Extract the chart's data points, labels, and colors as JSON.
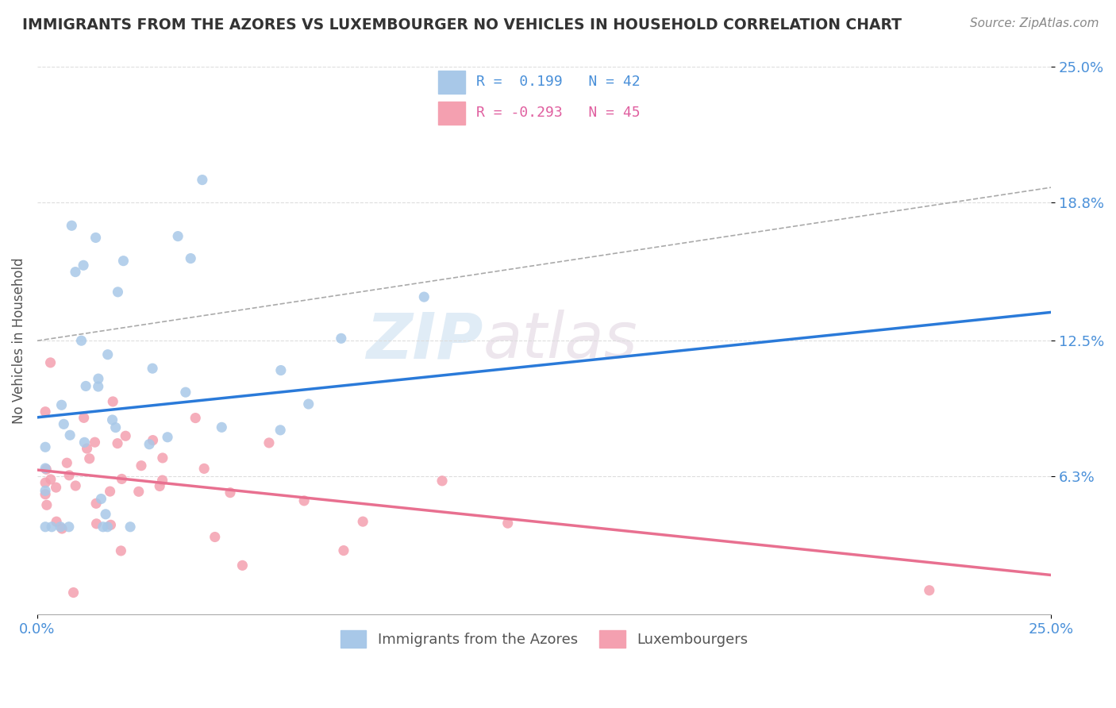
{
  "title": "IMMIGRANTS FROM THE AZORES VS LUXEMBOURGER NO VEHICLES IN HOUSEHOLD CORRELATION CHART",
  "source": "Source: ZipAtlas.com",
  "ylabel": "No Vehicles in Household",
  "xlim": [
    0.0,
    0.25
  ],
  "ylim": [
    0.0,
    0.25
  ],
  "xtick_labels": [
    "0.0%",
    "25.0%"
  ],
  "ytick_labels": [
    "6.3%",
    "12.5%",
    "18.8%",
    "25.0%"
  ],
  "ytick_values": [
    0.063,
    0.125,
    0.188,
    0.25
  ],
  "legend1_label": "Immigrants from the Azores",
  "legend2_label": "Luxembourgers",
  "R1": 0.199,
  "N1": 42,
  "R2": -0.293,
  "N2": 45,
  "color1": "#a8c8e8",
  "color2": "#f4a0b0",
  "line1_color": "#2a7ad9",
  "line2_color": "#e87090",
  "dash_color": "#aaaaaa",
  "watermark_color": "#ddeeff",
  "background_color": "#ffffff"
}
